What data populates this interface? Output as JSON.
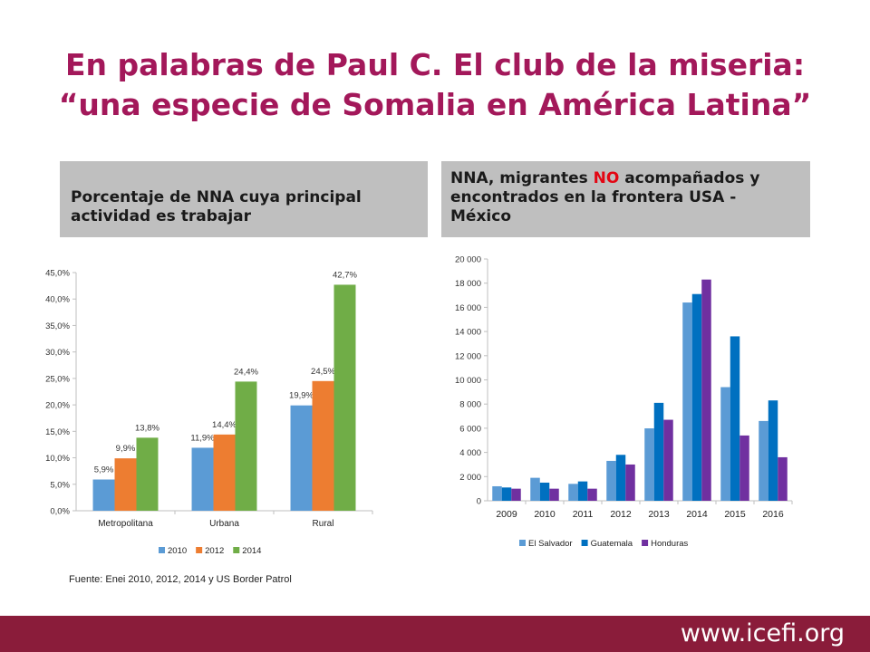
{
  "title": {
    "line1": "En palabras de Paul C. El club de la miseria:",
    "line2": "“una especie de Somalia en América Latina”"
  },
  "left_panel": {
    "header": "Porcentaje de NNA cuya principal actividad es trabajar"
  },
  "right_panel": {
    "header_pre": "NNA, migrantes ",
    "header_highlight": "NO",
    "header_post": " acompañados y encontrados en la frontera USA - México"
  },
  "source": "Fuente: Enei 2010, 2012, 2014 y US Border Patrol",
  "footer": {
    "url": "www.icefi.org"
  },
  "colors": {
    "title": "#a3185a",
    "highlight": "#e30613",
    "footer": "#8a1c3a"
  },
  "chart_data": [
    {
      "type": "bar",
      "categories": [
        "Metropolitana",
        "Urbana",
        "Rural"
      ],
      "series": [
        {
          "name": "2010",
          "color": "#5b9bd5",
          "values": [
            5.9,
            11.9,
            19.9
          ],
          "labels": [
            "5,9%",
            "11,9%",
            "19,9%"
          ]
        },
        {
          "name": "2012",
          "color": "#ed7d31",
          "values": [
            9.9,
            14.4,
            24.5
          ],
          "labels": [
            "9,9%",
            "14,4%",
            "24,5%"
          ]
        },
        {
          "name": "2014",
          "color": "#70ad47",
          "values": [
            13.8,
            24.4,
            42.7
          ],
          "labels": [
            "13,8%",
            "24,4%",
            "42,7%"
          ]
        }
      ],
      "ylim": [
        0,
        45
      ],
      "yticks": [
        0,
        5,
        10,
        15,
        20,
        25,
        30,
        35,
        40,
        45
      ],
      "ytick_labels": [
        "0,0%",
        "5,0%",
        "10,0%",
        "15,0%",
        "20,0%",
        "25,0%",
        "30,0%",
        "35,0%",
        "40,0%",
        "45,0%"
      ],
      "grid": false,
      "legend": "bottom"
    },
    {
      "type": "bar",
      "categories": [
        "2009",
        "2010",
        "2011",
        "2012",
        "2013",
        "2014",
        "2015",
        "2016"
      ],
      "series": [
        {
          "name": "El Salvador",
          "color": "#5b9bd5",
          "values": [
            1200,
            1900,
            1400,
            3300,
            5990,
            16400,
            9400,
            6600
          ]
        },
        {
          "name": "Guatemala",
          "color": "#0070c0",
          "values": [
            1100,
            1500,
            1600,
            3800,
            8100,
            17100,
            13600,
            8300
          ]
        },
        {
          "name": "Honduras",
          "color": "#7030a0",
          "values": [
            1000,
            1000,
            1000,
            3000,
            6700,
            18300,
            5400,
            3600
          ]
        }
      ],
      "ylim": [
        0,
        20000
      ],
      "yticks": [
        0,
        2000,
        4000,
        6000,
        8000,
        10000,
        12000,
        14000,
        16000,
        18000,
        20000
      ],
      "ytick_labels": [
        "0",
        "2 000",
        "4 000",
        "6 000",
        "8 000",
        "10 000",
        "12 000",
        "14 000",
        "16 000",
        "18 000",
        "20 000"
      ],
      "grid": false,
      "legend": "bottom"
    }
  ]
}
